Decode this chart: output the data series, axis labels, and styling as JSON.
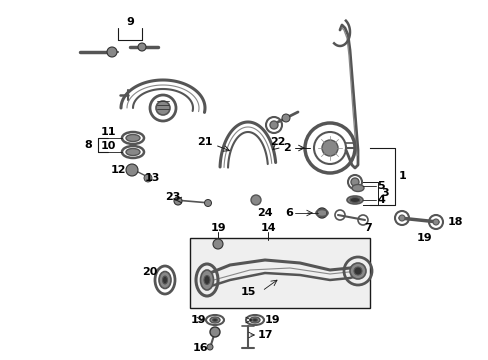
{
  "bg_color": "#ffffff",
  "lc": "#1a1a1a",
  "pc": "#4a4a4a",
  "fig_width": 4.89,
  "fig_height": 3.6,
  "dpi": 100
}
